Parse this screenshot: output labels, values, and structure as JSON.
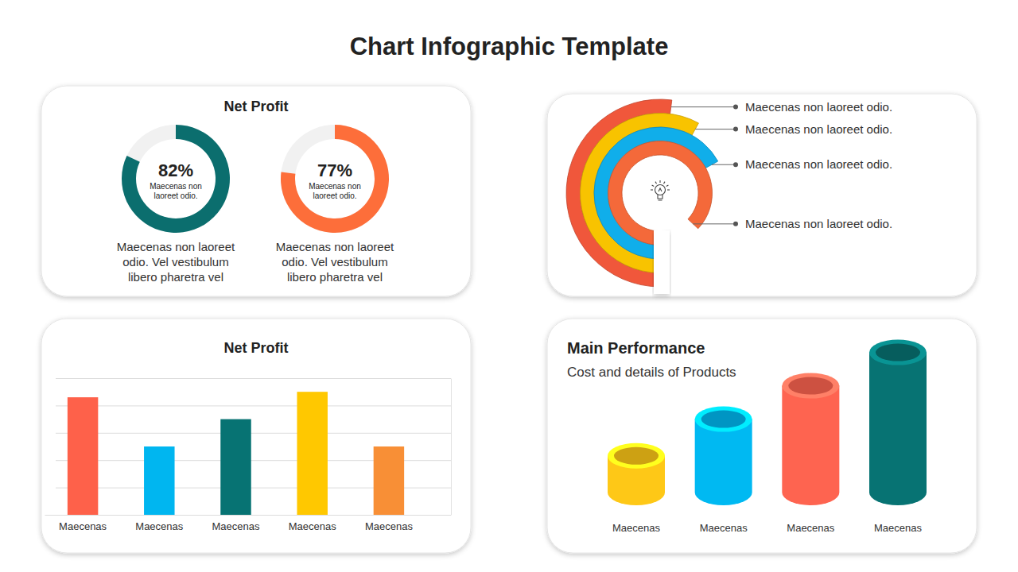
{
  "title": "Chart Infographic Template",
  "chart_data": [
    {
      "type": "donut",
      "title": "Net Profit",
      "values": [
        82,
        77
      ],
      "value_labels": [
        "82%",
        "77%"
      ],
      "data_labels": true,
      "colors": [
        "#0b6e6e",
        "#fd6e3a"
      ],
      "labels": [
        "Maecenas non laoreet odio.",
        "Maecenas non laoreet odio."
      ],
      "descriptions": [
        "Maecenas non laoreet odio. Vel vestibulum libero pharetra vel",
        "Maecenas non laoreet odio. Vel vestibulum libero pharetra vel"
      ],
      "ylim": [
        0,
        100
      ]
    },
    {
      "type": "radial_bar",
      "categories": [
        "Maecenas non laoreet odio.",
        "Maecenas non laoreet odio.",
        "Maecenas non laoreet odio.",
        "Maecenas non laoreet odio."
      ],
      "values": [
        52,
        58,
        67,
        87
      ],
      "colors": [
        "#f0573b",
        "#f8c300",
        "#10aeea",
        "#f4693a"
      ],
      "ylim": [
        0,
        100
      ],
      "tick_labels": false
    },
    {
      "type": "bar",
      "title": "Net Profit",
      "categories": [
        "Maecenas",
        "Maecenas",
        "Maecenas",
        "Maecenas",
        "Maecenas"
      ],
      "values": [
        4.3,
        2.5,
        3.5,
        4.5,
        2.5
      ],
      "colors": [
        "#fe614a",
        "#00b6f0",
        "#077373",
        "#ffc800",
        "#f88f36"
      ],
      "ylim": [
        0,
        5
      ],
      "yticks": [
        0,
        1,
        2,
        3,
        4,
        5
      ],
      "grid": true,
      "tick_labels": "x"
    },
    {
      "type": "cylinder",
      "title": "Main Performance",
      "subtitle": "Cost and details of Products",
      "categories": [
        "Maecenas",
        "Maecenas",
        "Maecenas",
        "Maecenas"
      ],
      "values": [
        22,
        44,
        64,
        84
      ],
      "colors": [
        "#fec817",
        "#00b9f2",
        "#fe6450",
        "#077373"
      ],
      "ylim": [
        0,
        100
      ],
      "tick_labels": "x"
    }
  ]
}
